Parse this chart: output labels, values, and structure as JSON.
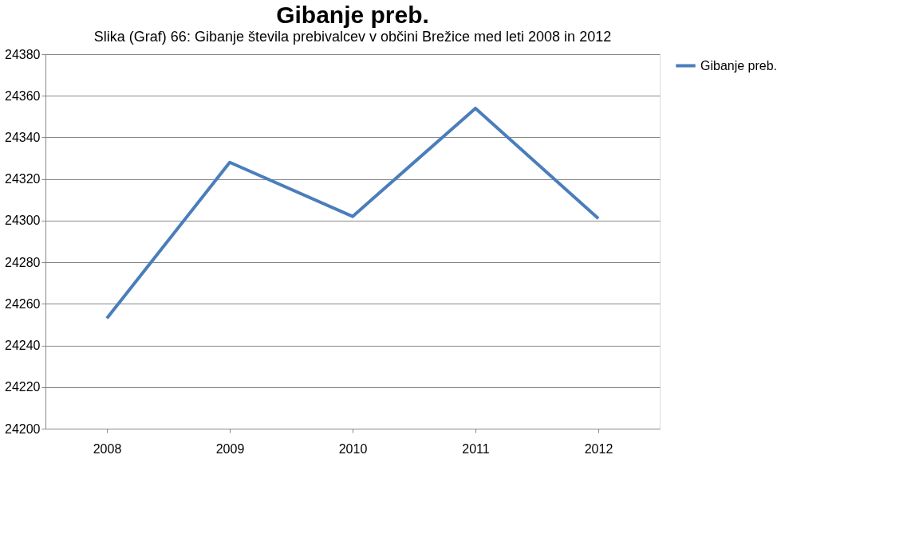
{
  "chart_data": {
    "type": "line",
    "title": "Gibanje preb.",
    "annotations": [
      "Slika (Graf) 66: Gibanje števila prebivalcev v občini Brežice med leti 2008 in 2012"
    ],
    "categories": [
      "2008",
      "2009",
      "2010",
      "2011",
      "2012"
    ],
    "series": [
      {
        "name": "Gibanje preb.",
        "color": "#4a7ebb",
        "values": [
          24253,
          24328,
          24302,
          24354,
          24301
        ]
      }
    ],
    "ylim": [
      24200,
      24380
    ],
    "yticks": [
      24200,
      24220,
      24240,
      24260,
      24280,
      24300,
      24320,
      24340,
      24360,
      24380
    ],
    "grid": "y",
    "legend": "right",
    "marker": "none",
    "line_style": "solid"
  }
}
